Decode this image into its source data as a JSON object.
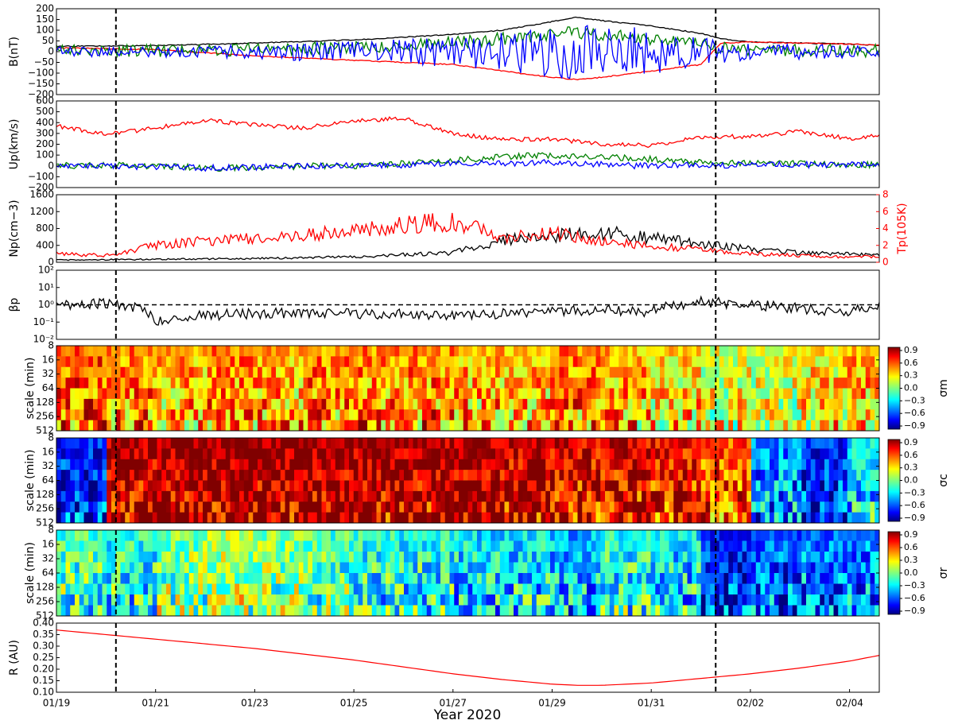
{
  "figure": {
    "xlabel": "Year 2020",
    "x_ticks": [
      "01/19",
      "01/21",
      "01/23",
      "01/25",
      "01/27",
      "01/29",
      "01/31",
      "02/02",
      "02/04"
    ],
    "dashed_markers_at_day": [
      1.2,
      13.3
    ]
  },
  "chart_data": [
    {
      "type": "line",
      "panel": "magnetic field",
      "ylabel": "B(nT)",
      "ylim": [
        -200,
        200
      ],
      "yticks": [
        "200",
        "150",
        "100",
        "50",
        "0",
        "−50",
        "−100",
        "−150",
        "−200"
      ],
      "x_days": [
        0,
        2,
        4,
        6,
        8,
        9,
        10,
        10.5,
        11,
        12,
        13,
        13.4,
        14,
        16,
        16.6
      ],
      "series": [
        {
          "color": "#000000",
          "values": [
            25,
            28,
            40,
            55,
            80,
            100,
            140,
            160,
            145,
            120,
            85,
            60,
            45,
            35,
            30
          ]
        },
        {
          "color": "#ff0000",
          "values": [
            18,
            10,
            -20,
            -40,
            -60,
            -90,
            -120,
            -130,
            -120,
            -90,
            -60,
            40,
            45,
            35,
            30
          ]
        },
        {
          "color": "#008000",
          "values": [
            5,
            5,
            10,
            20,
            40,
            60,
            80,
            90,
            80,
            60,
            40,
            15,
            10,
            5,
            5
          ]
        },
        {
          "color": "#0000ff",
          "values": [
            0,
            0,
            0,
            0,
            0,
            0,
            0,
            0,
            0,
            0,
            0,
            0,
            0,
            0,
            0
          ]
        }
      ]
    },
    {
      "type": "line",
      "panel": "proton velocity",
      "ylabel": "Up(km/s)",
      "ylim": [
        -200,
        600
      ],
      "yticks": [
        "600",
        "500",
        "400",
        "300",
        "200",
        "100",
        "0",
        "−100",
        "−200"
      ],
      "x_days": [
        0,
        1,
        2,
        3,
        4,
        5,
        6,
        7,
        8,
        9,
        10,
        11,
        12,
        13,
        14,
        15,
        16,
        16.6
      ],
      "series": [
        {
          "color": "#ff0000",
          "values": [
            370,
            290,
            350,
            420,
            380,
            350,
            420,
            440,
            300,
            240,
            250,
            200,
            190,
            270,
            270,
            320,
            250,
            280
          ]
        },
        {
          "color": "#008000",
          "values": [
            0,
            10,
            0,
            -20,
            -20,
            0,
            0,
            20,
            50,
            80,
            100,
            90,
            60,
            30,
            20,
            20,
            10,
            10
          ]
        },
        {
          "color": "#0000ff",
          "values": [
            0,
            0,
            -10,
            -20,
            -10,
            0,
            0,
            10,
            20,
            20,
            30,
            10,
            0,
            10,
            10,
            10,
            10,
            10
          ]
        }
      ]
    },
    {
      "type": "line",
      "panel": "proton density and temperature",
      "ylabel": "Np(cm−3)",
      "ylim": [
        0,
        1800
      ],
      "yticks": [
        "1600",
        "1200",
        "800",
        "400",
        "0"
      ],
      "y2label": "Tp(105K)",
      "y2lim": [
        0,
        8
      ],
      "y2ticks": [
        "8",
        "6",
        "4",
        "2",
        "0"
      ],
      "x_days": [
        0,
        1,
        2,
        3,
        4,
        5,
        6,
        7,
        8,
        9,
        10,
        11,
        12,
        13,
        14,
        15,
        16,
        16.6
      ],
      "series": [
        {
          "color": "#000000",
          "axis": "left",
          "values": [
            60,
            70,
            80,
            90,
            100,
            120,
            150,
            200,
            250,
            600,
            700,
            800,
            650,
            500,
            350,
            250,
            220,
            200
          ]
        },
        {
          "color": "#ff0000",
          "axis": "right",
          "values": [
            1.0,
            0.8,
            2.0,
            2.5,
            2.8,
            3.2,
            3.8,
            4.5,
            4.8,
            3.0,
            3.5,
            2.5,
            2.0,
            1.5,
            1.0,
            0.8,
            0.6,
            0.7
          ]
        }
      ]
    },
    {
      "type": "line",
      "panel": "plasma beta",
      "ylabel": "βp",
      "yscale": "log",
      "ylim": [
        0.01,
        100
      ],
      "yticks": [
        "10²",
        "10¹",
        "10⁰",
        "10⁻¹",
        "10⁻²"
      ],
      "reference_line": 1,
      "x_days": [
        0,
        1,
        1.5,
        2,
        3,
        4,
        5,
        6,
        7,
        8,
        9,
        10,
        11,
        12,
        13,
        14,
        15,
        16,
        16.6
      ],
      "series": [
        {
          "color": "#000000",
          "values": [
            1.0,
            1.2,
            0.8,
            0.12,
            0.25,
            0.3,
            0.35,
            0.3,
            0.3,
            0.25,
            0.3,
            0.45,
            0.5,
            0.4,
            1.5,
            1.0,
            0.6,
            0.35,
            1.0
          ]
        }
      ]
    },
    {
      "type": "heatmap",
      "panel": "sigma_m",
      "ylabel": "scale (min)",
      "yticks": [
        "8",
        "16",
        "32",
        "64",
        "128",
        "256",
        "512"
      ],
      "colorbar_label": "σm",
      "colorbar_ticks": [
        "0.9",
        "0.6",
        "0.3",
        "0.0",
        "−0.3",
        "−0.6",
        "−0.9"
      ],
      "colormap": "jet",
      "mean_value_by_day": [
        0.6,
        0.5,
        0.4,
        0.5,
        0.4,
        0.5,
        0.5,
        0.5,
        0.4,
        0.4,
        0.5,
        0.4,
        0.3,
        0.2,
        0.2,
        0.3,
        0.4
      ]
    },
    {
      "type": "heatmap",
      "panel": "sigma_c",
      "ylabel": "scale (min)",
      "yticks": [
        "8",
        "16",
        "32",
        "64",
        "128",
        "256",
        "512"
      ],
      "colorbar_label": "σc",
      "colorbar_ticks": [
        "0.9",
        "0.6",
        "0.3",
        "0.0",
        "−0.3",
        "−0.6",
        "−0.9"
      ],
      "colormap": "jet",
      "mean_value_by_day": [
        -0.7,
        0.9,
        0.95,
        0.95,
        0.95,
        0.95,
        0.9,
        0.9,
        0.9,
        0.85,
        0.8,
        0.8,
        0.75,
        0.6,
        -0.5,
        -0.7,
        -0.3
      ]
    },
    {
      "type": "heatmap",
      "panel": "sigma_r",
      "ylabel": "scale (min)",
      "yticks": [
        "8",
        "16",
        "32",
        "64",
        "128",
        "256",
        "512"
      ],
      "colorbar_label": "σr",
      "colorbar_ticks": [
        "0.9",
        "0.6",
        "0.3",
        "0.0",
        "−0.3",
        "−0.6",
        "−0.9"
      ],
      "colormap": "jet",
      "mean_value_by_day": [
        -0.1,
        -0.2,
        0.0,
        0.1,
        0.0,
        -0.1,
        -0.2,
        -0.2,
        -0.3,
        -0.3,
        -0.4,
        -0.2,
        -0.3,
        -0.7,
        -0.6,
        -0.5,
        -0.5
      ]
    },
    {
      "type": "line",
      "panel": "heliocentric distance",
      "ylabel": "R (AU)",
      "ylim": [
        0.1,
        0.4
      ],
      "yticks": [
        "0.40",
        "0.35",
        "0.30",
        "0.25",
        "0.20",
        "0.15",
        "0.10"
      ],
      "x_days": [
        0,
        1,
        2,
        3,
        4,
        5,
        6,
        7,
        8,
        9,
        10,
        10.5,
        11,
        12,
        13,
        14,
        15,
        16,
        16.6
      ],
      "series": [
        {
          "color": "#ff0000",
          "values": [
            0.37,
            0.35,
            0.33,
            0.31,
            0.29,
            0.265,
            0.24,
            0.21,
            0.18,
            0.155,
            0.135,
            0.13,
            0.13,
            0.14,
            0.16,
            0.18,
            0.205,
            0.235,
            0.26
          ]
        }
      ]
    }
  ]
}
